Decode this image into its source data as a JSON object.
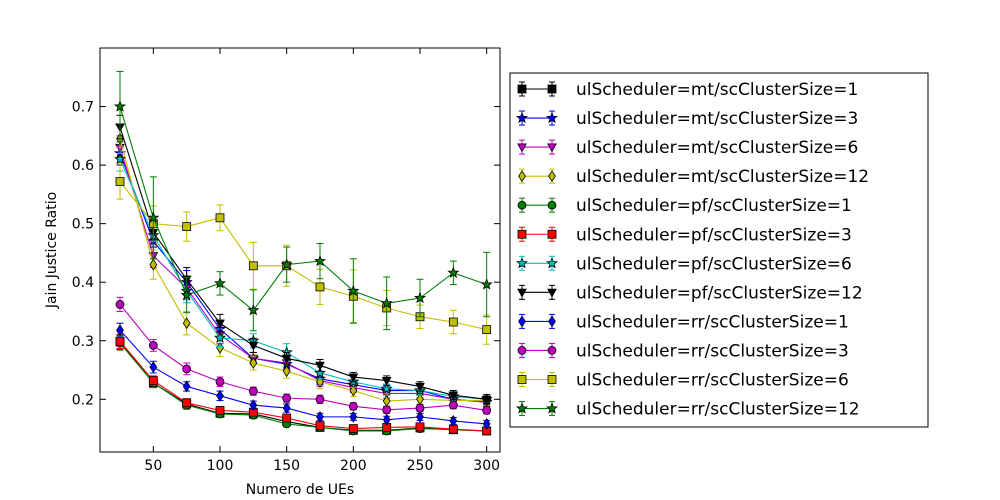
{
  "chart_data": {
    "type": "line",
    "title": "",
    "xlabel": "Numero de UEs",
    "ylabel": "Jain Justice Ratio",
    "xlim": [
      10,
      310
    ],
    "ylim": [
      0.11,
      0.8
    ],
    "xticks": [
      50,
      100,
      150,
      200,
      250,
      300
    ],
    "yticks": [
      0.2,
      0.3,
      0.4,
      0.5,
      0.6,
      0.7
    ],
    "grid": false,
    "legend_position": "right",
    "x": [
      25,
      50,
      75,
      100,
      125,
      150,
      175,
      200,
      225,
      250,
      275,
      300
    ],
    "series": [
      {
        "name": "ulScheduler=mt/scClusterSize=1",
        "color": "#000000",
        "marker": "square",
        "values": [
          0.298,
          0.228,
          0.192,
          0.176,
          0.175,
          0.162,
          0.152,
          0.147,
          0.147,
          0.151,
          0.148,
          0.146
        ],
        "errors": [
          0.012,
          0.008,
          0.007,
          0.006,
          0.006,
          0.005,
          0.005,
          0.005,
          0.005,
          0.005,
          0.005,
          0.005
        ]
      },
      {
        "name": "ulScheduler=mt/scClusterSize=3",
        "color": "#0000ff",
        "marker": "star",
        "values": [
          0.62,
          0.47,
          0.4,
          0.32,
          0.27,
          0.26,
          0.235,
          0.225,
          0.215,
          0.215,
          0.2,
          0.195
        ],
        "errors": [
          0.02,
          0.02,
          0.02,
          0.015,
          0.01,
          0.01,
          0.01,
          0.008,
          0.008,
          0.008,
          0.008,
          0.008
        ]
      },
      {
        "name": "ulScheduler=mt/scClusterSize=6",
        "color": "#bf00bf",
        "marker": "triangle-down",
        "values": [
          0.63,
          0.445,
          0.39,
          0.31,
          0.27,
          0.262,
          0.232,
          0.22,
          0.21,
          0.21,
          0.2,
          0.195
        ],
        "errors": [
          0.02,
          0.02,
          0.02,
          0.015,
          0.01,
          0.01,
          0.01,
          0.008,
          0.008,
          0.008,
          0.008,
          0.008
        ]
      },
      {
        "name": "ulScheduler=mt/scClusterSize=12",
        "color": "#bfbf00",
        "marker": "diamond",
        "values": [
          0.645,
          0.43,
          0.33,
          0.288,
          0.262,
          0.248,
          0.23,
          0.215,
          0.197,
          0.2,
          0.198,
          0.198
        ],
        "errors": [
          0.025,
          0.025,
          0.02,
          0.015,
          0.012,
          0.012,
          0.012,
          0.01,
          0.01,
          0.008,
          0.008,
          0.008
        ]
      },
      {
        "name": "ulScheduler=pf/scClusterSize=1",
        "color": "#008000",
        "marker": "circle",
        "values": [
          0.296,
          0.228,
          0.19,
          0.175,
          0.173,
          0.158,
          0.152,
          0.146,
          0.146,
          0.15,
          0.148,
          0.146
        ],
        "errors": [
          0.012,
          0.008,
          0.007,
          0.006,
          0.006,
          0.005,
          0.005,
          0.005,
          0.005,
          0.005,
          0.005,
          0.005
        ]
      },
      {
        "name": "ulScheduler=pf/scClusterSize=3",
        "color": "#ff0000",
        "marker": "square",
        "values": [
          0.299,
          0.232,
          0.194,
          0.181,
          0.178,
          0.168,
          0.155,
          0.15,
          0.152,
          0.153,
          0.149,
          0.146
        ],
        "errors": [
          0.012,
          0.008,
          0.007,
          0.006,
          0.006,
          0.005,
          0.005,
          0.005,
          0.005,
          0.005,
          0.005,
          0.005
        ]
      },
      {
        "name": "ulScheduler=pf/scClusterSize=6",
        "color": "#00bfbf",
        "marker": "star",
        "values": [
          0.61,
          0.48,
          0.385,
          0.305,
          0.3,
          0.28,
          0.245,
          0.23,
          0.218,
          0.215,
          0.205,
          0.2
        ],
        "errors": [
          0.02,
          0.02,
          0.02,
          0.015,
          0.012,
          0.015,
          0.01,
          0.01,
          0.008,
          0.008,
          0.008,
          0.008
        ]
      },
      {
        "name": "ulScheduler=pf/scClusterSize=12",
        "color": "#000000",
        "marker": "triangle-down",
        "values": [
          0.665,
          0.485,
          0.405,
          0.33,
          0.292,
          0.27,
          0.258,
          0.238,
          0.232,
          0.222,
          0.207,
          0.2
        ],
        "errors": [
          0.02,
          0.025,
          0.02,
          0.015,
          0.012,
          0.01,
          0.01,
          0.008,
          0.008,
          0.008,
          0.008,
          0.008
        ]
      },
      {
        "name": "ulScheduler=rr/scClusterSize=1",
        "color": "#0000ff",
        "marker": "diamond",
        "values": [
          0.318,
          0.255,
          0.222,
          0.206,
          0.19,
          0.185,
          0.17,
          0.17,
          0.165,
          0.17,
          0.163,
          0.158
        ],
        "errors": [
          0.012,
          0.01,
          0.008,
          0.008,
          0.007,
          0.007,
          0.006,
          0.006,
          0.006,
          0.006,
          0.006,
          0.006
        ]
      },
      {
        "name": "ulScheduler=rr/scClusterSize=3",
        "color": "#bf00bf",
        "marker": "circle",
        "values": [
          0.362,
          0.292,
          0.252,
          0.23,
          0.214,
          0.202,
          0.2,
          0.188,
          0.182,
          0.185,
          0.19,
          0.181
        ],
        "errors": [
          0.012,
          0.01,
          0.01,
          0.008,
          0.007,
          0.007,
          0.007,
          0.006,
          0.006,
          0.006,
          0.006,
          0.006
        ]
      },
      {
        "name": "ulScheduler=rr/scClusterSize=6",
        "color": "#bfbf00",
        "marker": "square",
        "values": [
          0.572,
          0.5,
          0.495,
          0.51,
          0.428,
          0.428,
          0.392,
          0.376,
          0.356,
          0.341,
          0.332,
          0.319
        ],
        "errors": [
          0.03,
          0.03,
          0.025,
          0.022,
          0.04,
          0.035,
          0.03,
          0.045,
          0.03,
          0.02,
          0.02,
          0.025
        ]
      },
      {
        "name": "ulScheduler=rr/scClusterSize=12",
        "color": "#008000",
        "marker": "star",
        "values": [
          0.7,
          0.51,
          0.378,
          0.398,
          0.352,
          0.43,
          0.436,
          0.385,
          0.364,
          0.373,
          0.416,
          0.396
        ],
        "errors": [
          0.06,
          0.07,
          0.03,
          0.02,
          0.035,
          0.03,
          0.03,
          0.055,
          0.045,
          0.032,
          0.02,
          0.055
        ]
      }
    ]
  }
}
